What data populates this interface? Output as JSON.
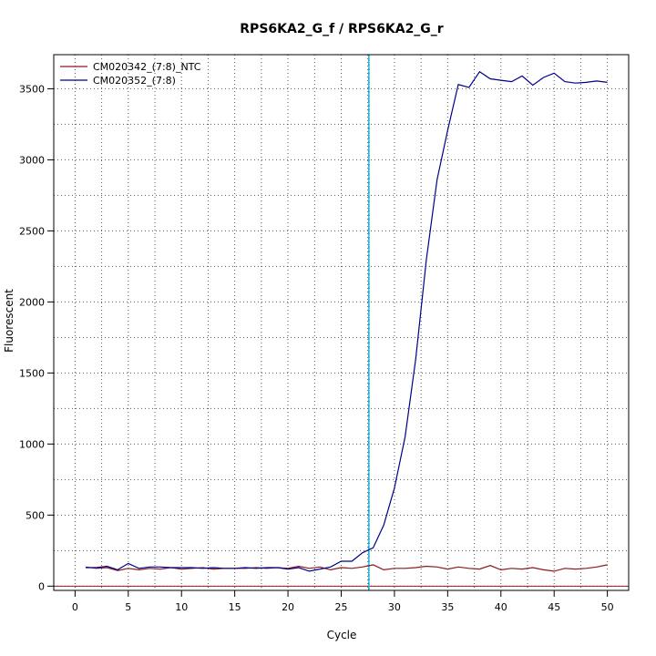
{
  "chart_data": {
    "type": "line",
    "title": "RPS6KA2_G_f / RPS6KA2_G_r",
    "xlabel": "Cycle",
    "ylabel": "Fluorescent",
    "xlim": [
      -2,
      52
    ],
    "ylim": [
      -30,
      3740
    ],
    "x_ticks": [
      0,
      5,
      10,
      15,
      20,
      25,
      30,
      35,
      40,
      45,
      50
    ],
    "y_ticks": [
      0,
      500,
      1000,
      1500,
      2000,
      2500,
      3000,
      3500
    ],
    "grid": true,
    "legend_position": "top-left",
    "threshold_x": 27.6,
    "baseline_y": 0,
    "x": [
      1,
      2,
      3,
      4,
      5,
      6,
      7,
      8,
      9,
      10,
      11,
      12,
      13,
      14,
      15,
      16,
      17,
      18,
      19,
      20,
      21,
      22,
      23,
      24,
      25,
      26,
      27,
      28,
      29,
      30,
      31,
      32,
      33,
      34,
      35,
      36,
      37,
      38,
      39,
      40,
      41,
      42,
      43,
      44,
      45,
      46,
      47,
      48,
      49,
      50
    ],
    "series": [
      {
        "name": "CM020342_(7:8)_NTC",
        "color": "#8b1a1a",
        "values": [
          135,
          125,
          130,
          110,
          125,
          115,
          125,
          120,
          130,
          120,
          125,
          130,
          120,
          125,
          125,
          125,
          130,
          125,
          130,
          125,
          140,
          125,
          135,
          115,
          130,
          125,
          135,
          150,
          115,
          125,
          125,
          130,
          140,
          135,
          120,
          135,
          125,
          120,
          145,
          115,
          125,
          120,
          130,
          115,
          105,
          125,
          120,
          125,
          135,
          150
        ]
      },
      {
        "name": "CM020352_(7:8)",
        "color": "#00008b",
        "values": [
          130,
          130,
          140,
          115,
          160,
          125,
          135,
          135,
          130,
          130,
          130,
          125,
          130,
          125,
          125,
          130,
          125,
          130,
          130,
          120,
          130,
          105,
          120,
          135,
          175,
          175,
          235,
          270,
          430,
          690,
          1050,
          1600,
          2300,
          2860,
          3210,
          3530,
          3510,
          3620,
          3570,
          3560,
          3550,
          3590,
          3525,
          3580,
          3610,
          3550,
          3540,
          3545,
          3555,
          3545
        ]
      }
    ]
  }
}
